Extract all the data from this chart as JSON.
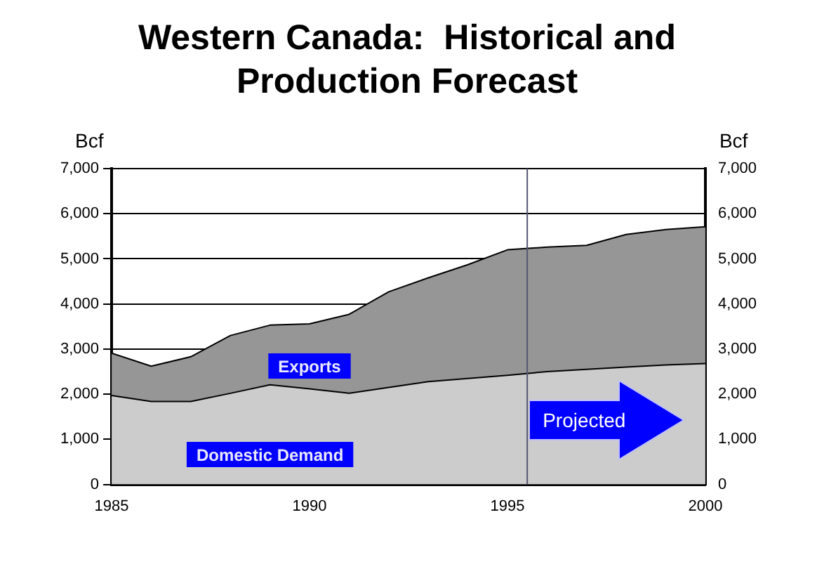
{
  "chart_data": {
    "type": "area",
    "title": "Western Canada:  Historical and Production Forecast",
    "ylabel": "Bcf",
    "y2label": "Bcf",
    "x": [
      1985,
      1986,
      1987,
      1988,
      1989,
      1990,
      1991,
      1992,
      1993,
      1994,
      1995,
      1996,
      1997,
      1998,
      1999,
      2000
    ],
    "stacked": true,
    "series": [
      {
        "name": "Domestic Demand",
        "color": "#cccccc",
        "values": [
          1970,
          1840,
          1840,
          2020,
          2210,
          2120,
          2020,
          2150,
          2280,
          2350,
          2420,
          2500,
          2550,
          2600,
          2650,
          2680
        ]
      },
      {
        "name": "Exports",
        "color": "#969696",
        "values": [
          940,
          780,
          990,
          1280,
          1320,
          1440,
          1750,
          2120,
          2300,
          2520,
          2780,
          2760,
          2750,
          2940,
          3000,
          3030
        ]
      }
    ],
    "xlim": [
      1985,
      2000
    ],
    "xticks": [
      1985,
      1990,
      1995,
      2000
    ],
    "ylim": [
      0,
      7000
    ],
    "yticks": [
      {
        "value": 0,
        "label": "0"
      },
      {
        "value": 1000,
        "label": "1,000"
      },
      {
        "value": 2000,
        "label": "2,000"
      },
      {
        "value": 3000,
        "label": "3,000"
      },
      {
        "value": 4000,
        "label": "4,000"
      },
      {
        "value": 5000,
        "label": "5,000"
      },
      {
        "value": 6000,
        "label": "6,000"
      },
      {
        "value": 7000,
        "label": "7,000"
      }
    ],
    "y2lim": [
      0,
      7000
    ],
    "y2ticks": [
      {
        "value": 0,
        "label": "0"
      },
      {
        "value": 1000,
        "label": "1,000"
      },
      {
        "value": 2000,
        "label": "2,000"
      },
      {
        "value": 3000,
        "label": "3,000"
      },
      {
        "value": 4000,
        "label": "4,000"
      },
      {
        "value": 5000,
        "label": "5,000"
      },
      {
        "value": 6000,
        "label": "6,000"
      },
      {
        "value": 7000,
        "label": "7,000"
      }
    ],
    "ref_lines": [
      {
        "axis": "x",
        "value": 1995.5,
        "color": "#555570"
      }
    ],
    "annotations": [
      "Projected"
    ],
    "grid": "y",
    "legend": false
  }
}
